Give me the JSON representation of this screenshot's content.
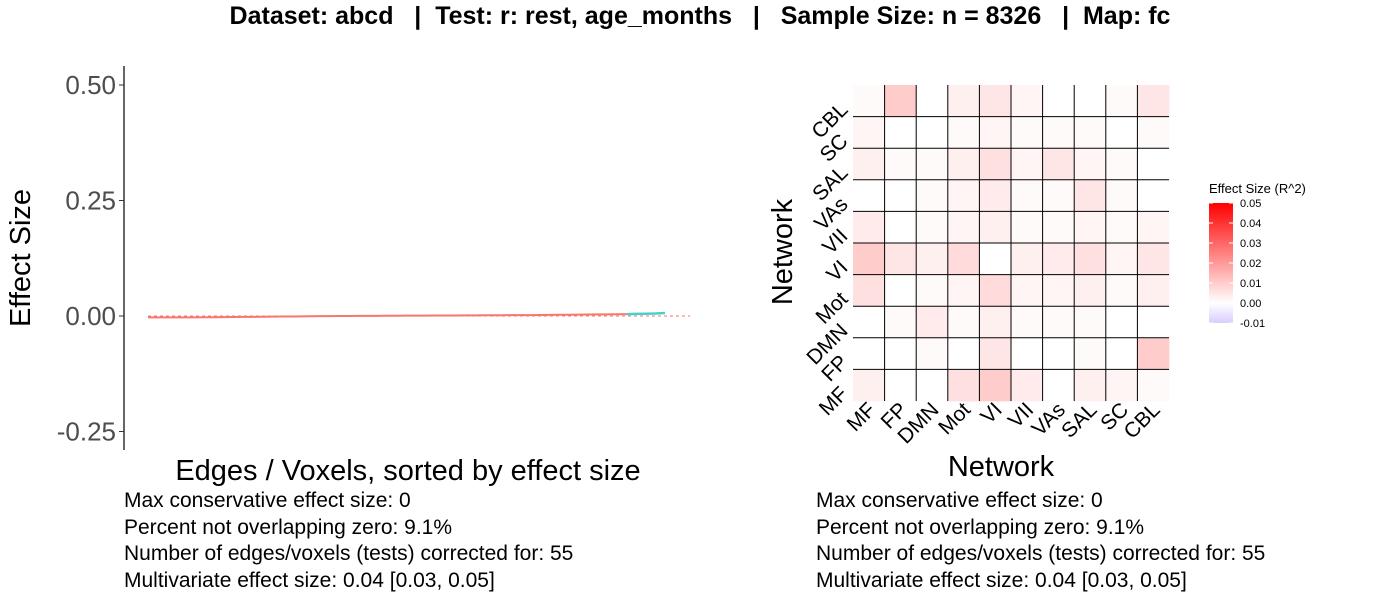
{
  "title": "Dataset: abcd   |  Test: r: rest, age_months   |   Sample Size: n = 8326   |  Map: fc",
  "colors": {
    "line": "#f8766d",
    "line_highlight": "#48d1cc",
    "ref_line": "#f8766d",
    "scale_high": "#ff0000",
    "scale_mid": "#ffffff",
    "scale_low": "#d9ccff"
  },
  "chart_data": [
    {
      "type": "line",
      "title": "",
      "xlabel": "Edges / Voxels, sorted by effect size",
      "ylabel": "Effect Size",
      "ylim": [
        -0.28,
        0.53
      ],
      "yticks": [
        0.5,
        0.25,
        0.0,
        -0.25
      ],
      "ytick_labels": [
        "0.50",
        "0.25",
        "0.00",
        "-0.25"
      ],
      "reference_line": 0,
      "n_points": 55,
      "highlight_from_index": 50,
      "values": [
        -0.003,
        -0.003,
        -0.003,
        -0.003,
        -0.003,
        -0.003,
        -0.0028,
        -0.0026,
        -0.0024,
        -0.0022,
        -0.002,
        -0.0018,
        -0.0016,
        -0.0014,
        -0.0012,
        -0.001,
        -0.0008,
        -0.0006,
        -0.0004,
        -0.0002,
        0.0,
        0.0001,
        0.0002,
        0.0003,
        0.0004,
        0.0005,
        0.0006,
        0.0007,
        0.0008,
        0.0009,
        0.001,
        0.0011,
        0.0012,
        0.0013,
        0.0014,
        0.0015,
        0.0016,
        0.0017,
        0.0018,
        0.0019,
        0.002,
        0.0022,
        0.0024,
        0.0026,
        0.0028,
        0.003,
        0.0032,
        0.0034,
        0.0036,
        0.0038,
        0.004,
        0.0045,
        0.005,
        0.0055,
        0.0065
      ],
      "stats": [
        "Max conservative effect size: 0",
        "Percent not overlapping zero: 9.1%",
        "Number of edges/voxels (tests) corrected for: 55",
        "Multivariate effect size: 0.04 [0.03, 0.05]"
      ]
    },
    {
      "type": "heatmap",
      "xlabel": "Network",
      "ylabel": "Network",
      "networks": [
        "MF",
        "FP",
        "DMN",
        "Mot",
        "VI",
        "VII",
        "VAs",
        "SAL",
        "SC",
        "CBL"
      ],
      "legend_title": "Effect Size (R^2)",
      "scale_range": [
        -0.01,
        0.05
      ],
      "legend_ticks": [
        0.05,
        0.04,
        0.03,
        0.02,
        0.01,
        0.0,
        -0.01
      ],
      "legend_tick_labels": [
        "0.05",
        "0.04",
        "0.03",
        "0.02",
        "0.01",
        "0.00",
        "-0.01"
      ],
      "values": [
        [
          0.003,
          0.0,
          0.0,
          0.006,
          0.01,
          0.004,
          0.0,
          0.003,
          0.002,
          0.001
        ],
        [
          0.0,
          0.0,
          0.001,
          0.0,
          0.005,
          0.0,
          0.0,
          0.001,
          0.0,
          0.01
        ],
        [
          0.0,
          0.001,
          0.004,
          0.001,
          0.003,
          0.001,
          0.001,
          0.001,
          0.0,
          0.0
        ],
        [
          0.006,
          0.0,
          0.001,
          0.002,
          0.007,
          0.002,
          0.002,
          0.003,
          0.001,
          0.003
        ],
        [
          0.01,
          0.005,
          0.003,
          0.007,
          0.0,
          0.003,
          0.004,
          0.006,
          0.002,
          0.005
        ],
        [
          0.004,
          0.0,
          0.001,
          0.002,
          0.003,
          0.001,
          0.001,
          0.002,
          0.001,
          0.002
        ],
        [
          0.0,
          0.0,
          0.001,
          0.002,
          0.004,
          0.001,
          0.001,
          0.005,
          0.001,
          0.0
        ],
        [
          0.003,
          0.001,
          0.001,
          0.003,
          0.006,
          0.002,
          0.005,
          0.002,
          0.001,
          0.0
        ],
        [
          0.002,
          0.0,
          0.0,
          0.001,
          0.002,
          0.001,
          0.001,
          0.001,
          0.0,
          0.001
        ],
        [
          0.001,
          0.01,
          0.0,
          0.003,
          0.005,
          0.002,
          0.0,
          0.0,
          0.001,
          0.005
        ]
      ],
      "stats": [
        "Max conservative effect size: 0",
        "Percent not overlapping zero: 9.1%",
        "Number of edges/voxels (tests) corrected for: 55",
        "Multivariate effect size: 0.04 [0.03, 0.05]"
      ]
    }
  ]
}
